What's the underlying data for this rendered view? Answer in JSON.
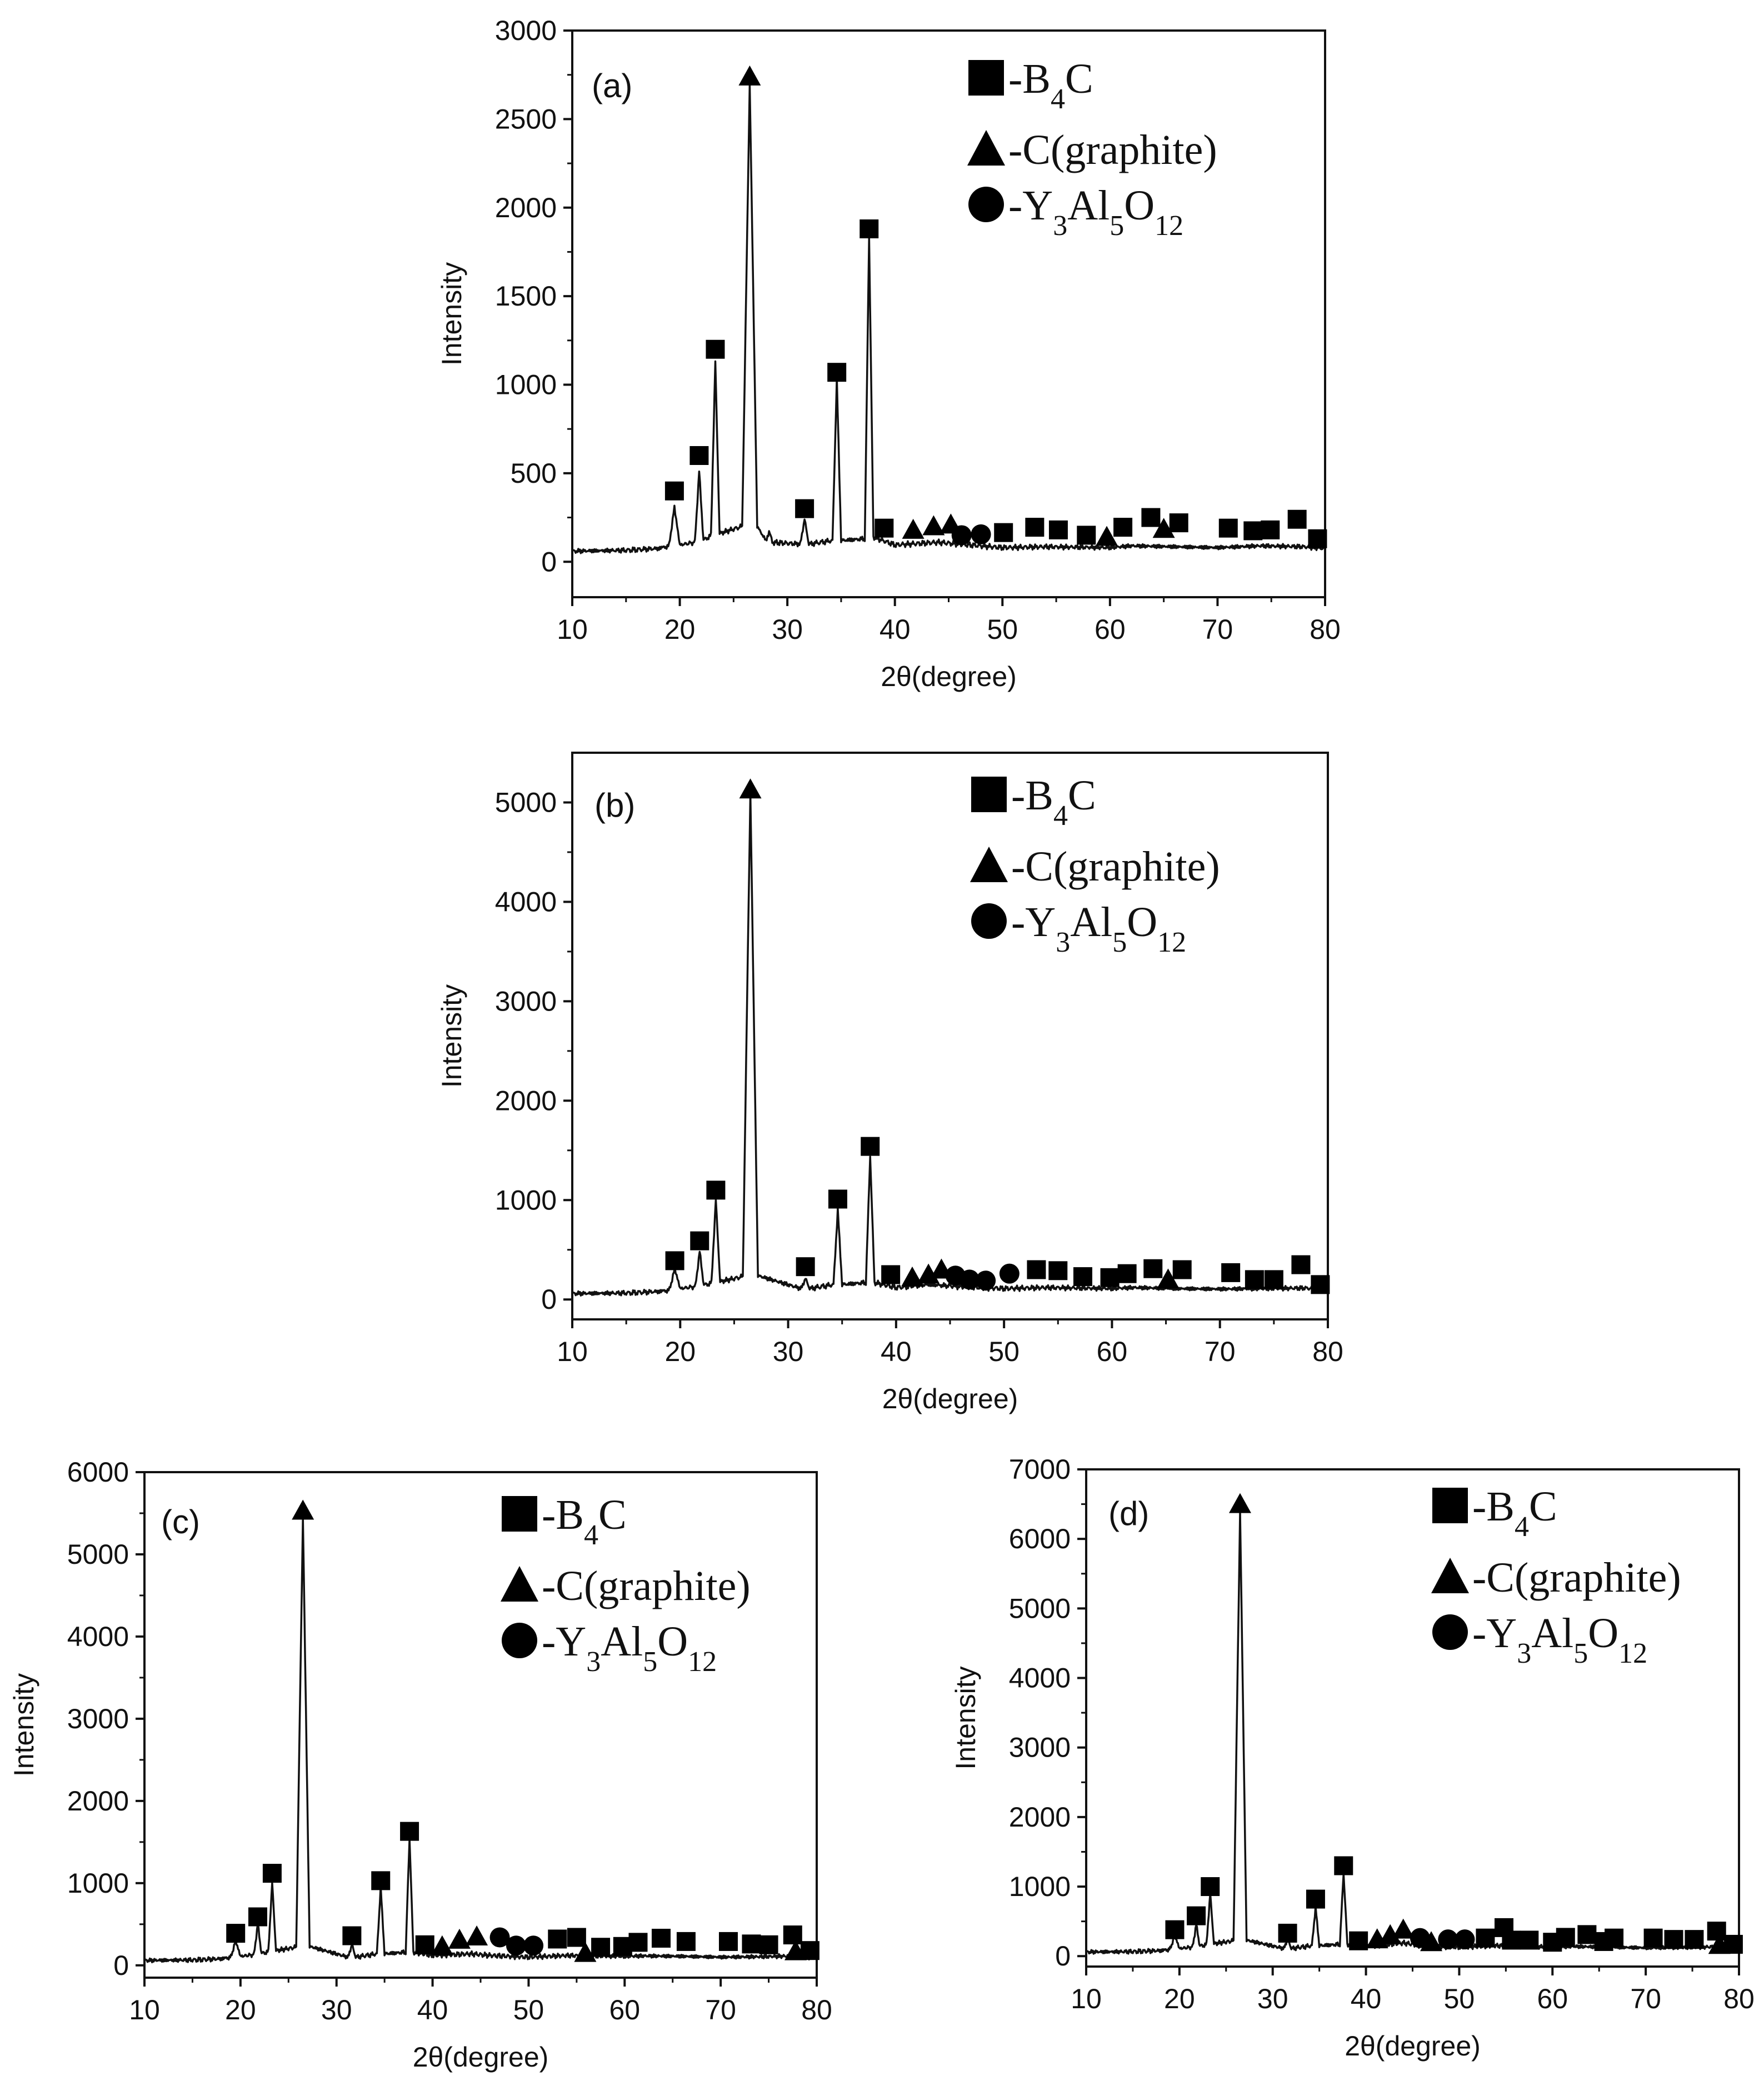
{
  "legend": {
    "b4c": {
      "prefix": "-B",
      "sub": "4",
      "suffix": "C"
    },
    "graphite": {
      "text": "-C(graphite)"
    },
    "yag": {
      "y": "-Y",
      "s1": "3",
      "al": "Al",
      "s2": "5",
      "o": "O",
      "s3": "12"
    }
  },
  "marker_colors": {
    "curve": "#111111",
    "marker": "#000000"
  },
  "chart_data": [
    {
      "type": "line",
      "panel_label": "(a)",
      "xlabel": "2θ(degree)",
      "ylabel": "Intensity",
      "xlim": [
        10,
        80
      ],
      "ylim": [
        -200,
        3000
      ],
      "xticks": [
        10,
        20,
        30,
        40,
        50,
        60,
        70,
        80
      ],
      "yticks": [
        0,
        500,
        1000,
        1500,
        2000,
        2500,
        3000
      ],
      "x": [
        10,
        15,
        18,
        19.0,
        19.5,
        20.0,
        21.4,
        21.8,
        22.2,
        22.9,
        23.3,
        23.7,
        25.8,
        26.5,
        27.2,
        28.0,
        28.3,
        28.6,
        31.2,
        31.6,
        32.0,
        34.2,
        34.6,
        35.0,
        37.2,
        37.6,
        38.0,
        40,
        44,
        46,
        50,
        54,
        60,
        62,
        66,
        70,
        74,
        78,
        80
      ],
      "y": [
        60,
        65,
        75,
        90,
        310,
        95,
        110,
        510,
        120,
        150,
        1130,
        160,
        200,
        2700,
        200,
        120,
        170,
        110,
        100,
        240,
        100,
        120,
        1030,
        120,
        130,
        1840,
        140,
        95,
        110,
        100,
        80,
        85,
        80,
        90,
        85,
        80,
        90,
        85,
        75
      ],
      "markers": [
        {
          "shape": "square",
          "x": 19.5,
          "y": 400
        },
        {
          "shape": "square",
          "x": 21.8,
          "y": 600
        },
        {
          "shape": "square",
          "x": 23.3,
          "y": 1200
        },
        {
          "shape": "triangle",
          "x": 26.5,
          "y": 2740
        },
        {
          "shape": "square",
          "x": 31.6,
          "y": 300
        },
        {
          "shape": "square",
          "x": 34.6,
          "y": 1070
        },
        {
          "shape": "square",
          "x": 37.6,
          "y": 1880
        },
        {
          "shape": "square",
          "x": 39.0,
          "y": 190
        },
        {
          "shape": "triangle",
          "x": 41.7,
          "y": 180
        },
        {
          "shape": "triangle",
          "x": 43.6,
          "y": 200
        },
        {
          "shape": "triangle",
          "x": 45.2,
          "y": 210
        },
        {
          "shape": "circle",
          "x": 46.2,
          "y": 150
        },
        {
          "shape": "circle",
          "x": 48.0,
          "y": 155
        },
        {
          "shape": "square",
          "x": 50.1,
          "y": 165
        },
        {
          "shape": "square",
          "x": 53.0,
          "y": 195
        },
        {
          "shape": "square",
          "x": 55.2,
          "y": 180
        },
        {
          "shape": "square",
          "x": 57.8,
          "y": 150
        },
        {
          "shape": "triangle",
          "x": 59.7,
          "y": 140
        },
        {
          "shape": "square",
          "x": 61.2,
          "y": 195
        },
        {
          "shape": "square",
          "x": 63.8,
          "y": 250
        },
        {
          "shape": "triangle",
          "x": 65.0,
          "y": 185
        },
        {
          "shape": "square",
          "x": 66.4,
          "y": 220
        },
        {
          "shape": "square",
          "x": 71.0,
          "y": 190
        },
        {
          "shape": "square",
          "x": 73.3,
          "y": 175
        },
        {
          "shape": "square",
          "x": 74.9,
          "y": 180
        },
        {
          "shape": "square",
          "x": 77.4,
          "y": 240
        },
        {
          "shape": "square",
          "x": 79.3,
          "y": 130
        }
      ]
    },
    {
      "type": "line",
      "panel_label": "(b)",
      "xlabel": "2θ(degree)",
      "ylabel": "Intensity",
      "xlim": [
        10,
        80
      ],
      "ylim": [
        -200,
        5500
      ],
      "xticks": [
        10,
        20,
        30,
        40,
        50,
        60,
        70,
        80
      ],
      "yticks": [
        0,
        1000,
        2000,
        3000,
        4000,
        5000
      ],
      "x": [
        10,
        15,
        18,
        19.0,
        19.5,
        20.0,
        21.4,
        21.8,
        22.2,
        22.9,
        23.3,
        23.7,
        25.8,
        26.5,
        27.2,
        31.2,
        31.6,
        32.0,
        34.2,
        34.6,
        35.0,
        37.2,
        37.6,
        38.0,
        40,
        43,
        46,
        50,
        54,
        60,
        62,
        66,
        70,
        74,
        78,
        80
      ],
      "y": [
        60,
        65,
        80,
        95,
        310,
        110,
        130,
        480,
        140,
        170,
        1000,
        180,
        230,
        5100,
        240,
        110,
        210,
        110,
        150,
        900,
        150,
        170,
        1450,
        170,
        120,
        150,
        130,
        110,
        120,
        110,
        120,
        110,
        105,
        110,
        115,
        90
      ],
      "markers": [
        {
          "shape": "square",
          "x": 19.5,
          "y": 390
        },
        {
          "shape": "square",
          "x": 21.8,
          "y": 590
        },
        {
          "shape": "square",
          "x": 23.3,
          "y": 1100
        },
        {
          "shape": "triangle",
          "x": 26.5,
          "y": 5130
        },
        {
          "shape": "square",
          "x": 31.6,
          "y": 330
        },
        {
          "shape": "square",
          "x": 34.6,
          "y": 1010
        },
        {
          "shape": "square",
          "x": 37.6,
          "y": 1540
        },
        {
          "shape": "square",
          "x": 39.5,
          "y": 250
        },
        {
          "shape": "triangle",
          "x": 41.5,
          "y": 220
        },
        {
          "shape": "triangle",
          "x": 43.0,
          "y": 250
        },
        {
          "shape": "triangle",
          "x": 44.2,
          "y": 300
        },
        {
          "shape": "circle",
          "x": 45.5,
          "y": 240
        },
        {
          "shape": "circle",
          "x": 46.8,
          "y": 200
        },
        {
          "shape": "circle",
          "x": 48.3,
          "y": 190
        },
        {
          "shape": "circle",
          "x": 50.5,
          "y": 260
        },
        {
          "shape": "square",
          "x": 53.0,
          "y": 300
        },
        {
          "shape": "square",
          "x": 55.0,
          "y": 290
        },
        {
          "shape": "square",
          "x": 57.3,
          "y": 230
        },
        {
          "shape": "square",
          "x": 59.8,
          "y": 220
        },
        {
          "shape": "square",
          "x": 61.4,
          "y": 260
        },
        {
          "shape": "square",
          "x": 63.8,
          "y": 310
        },
        {
          "shape": "triangle",
          "x": 65.2,
          "y": 200
        },
        {
          "shape": "square",
          "x": 66.5,
          "y": 300
        },
        {
          "shape": "square",
          "x": 71.0,
          "y": 270
        },
        {
          "shape": "square",
          "x": 73.2,
          "y": 200
        },
        {
          "shape": "square",
          "x": 75.0,
          "y": 200
        },
        {
          "shape": "square",
          "x": 77.5,
          "y": 350
        },
        {
          "shape": "square",
          "x": 79.3,
          "y": 150
        }
      ]
    },
    {
      "type": "line",
      "panel_label": "(c)",
      "xlabel": "2θ(degree)",
      "ylabel": "Intensity",
      "xlim": [
        10,
        80
      ],
      "ylim": [
        -150,
        6000
      ],
      "xticks": [
        10,
        20,
        30,
        40,
        50,
        60,
        70,
        80
      ],
      "yticks": [
        0,
        1000,
        2000,
        3000,
        4000,
        5000,
        6000
      ],
      "x": [
        10,
        15,
        18,
        19.0,
        19.5,
        20.0,
        21.4,
        21.8,
        22.2,
        22.9,
        23.3,
        23.7,
        25.8,
        26.5,
        27.2,
        31.2,
        31.6,
        32.0,
        34.2,
        34.6,
        35.0,
        37.2,
        37.6,
        38.0,
        40,
        44,
        46,
        50,
        54,
        60,
        62,
        66,
        70,
        74,
        78,
        80
      ],
      "y": [
        60,
        65,
        80,
        100,
        300,
        110,
        130,
        500,
        140,
        170,
        1000,
        180,
        220,
        5450,
        230,
        100,
        250,
        100,
        140,
        950,
        140,
        160,
        1550,
        160,
        120,
        140,
        120,
        100,
        120,
        110,
        115,
        110,
        100,
        105,
        115,
        85
      ],
      "markers": [
        {
          "shape": "square",
          "x": 19.5,
          "y": 390
        },
        {
          "shape": "square",
          "x": 21.8,
          "y": 590
        },
        {
          "shape": "square",
          "x": 23.3,
          "y": 1120
        },
        {
          "shape": "triangle",
          "x": 26.5,
          "y": 5530
        },
        {
          "shape": "square",
          "x": 31.6,
          "y": 360
        },
        {
          "shape": "square",
          "x": 34.6,
          "y": 1030
        },
        {
          "shape": "square",
          "x": 37.6,
          "y": 1630
        },
        {
          "shape": "square",
          "x": 39.2,
          "y": 250
        },
        {
          "shape": "triangle",
          "x": 41.0,
          "y": 230
        },
        {
          "shape": "triangle",
          "x": 42.8,
          "y": 310
        },
        {
          "shape": "triangle",
          "x": 44.6,
          "y": 350
        },
        {
          "shape": "circle",
          "x": 47.0,
          "y": 340
        },
        {
          "shape": "circle",
          "x": 48.7,
          "y": 240
        },
        {
          "shape": "circle",
          "x": 50.5,
          "y": 240
        },
        {
          "shape": "square",
          "x": 53.0,
          "y": 320
        },
        {
          "shape": "square",
          "x": 55.0,
          "y": 340
        },
        {
          "shape": "triangle",
          "x": 55.9,
          "y": 150
        },
        {
          "shape": "square",
          "x": 57.5,
          "y": 220
        },
        {
          "shape": "square",
          "x": 59.8,
          "y": 230
        },
        {
          "shape": "square",
          "x": 61.4,
          "y": 280
        },
        {
          "shape": "square",
          "x": 63.8,
          "y": 330
        },
        {
          "shape": "square",
          "x": 66.4,
          "y": 290
        },
        {
          "shape": "square",
          "x": 70.8,
          "y": 290
        },
        {
          "shape": "square",
          "x": 73.2,
          "y": 260
        },
        {
          "shape": "square",
          "x": 75.0,
          "y": 250
        },
        {
          "shape": "square",
          "x": 77.5,
          "y": 370
        },
        {
          "shape": "triangle",
          "x": 77.8,
          "y": 170
        },
        {
          "shape": "square",
          "x": 79.3,
          "y": 180
        }
      ]
    },
    {
      "type": "line",
      "panel_label": "(d)",
      "xlabel": "2θ(degree)",
      "ylabel": "Intensity",
      "xlim": [
        10,
        80
      ],
      "ylim": [
        -150,
        7000
      ],
      "xticks": [
        10,
        20,
        30,
        40,
        50,
        60,
        70,
        80
      ],
      "yticks": [
        0,
        1000,
        2000,
        3000,
        4000,
        5000,
        6000,
        7000
      ],
      "x": [
        10,
        15,
        18,
        19.0,
        19.5,
        20.0,
        21.4,
        21.8,
        22.2,
        22.9,
        23.3,
        23.7,
        25.8,
        26.5,
        27.2,
        31.2,
        31.6,
        32.0,
        34.2,
        34.6,
        35.0,
        37.2,
        37.6,
        38.0,
        40,
        44,
        46,
        50,
        54,
        60,
        62,
        66,
        70,
        74,
        78,
        80
      ],
      "y": [
        60,
        65,
        80,
        100,
        300,
        110,
        130,
        450,
        140,
        170,
        900,
        180,
        220,
        6400,
        230,
        110,
        250,
        110,
        150,
        700,
        150,
        170,
        1200,
        170,
        140,
        190,
        150,
        130,
        150,
        130,
        140,
        130,
        120,
        125,
        135,
        105
      ],
      "markers": [
        {
          "shape": "square",
          "x": 19.5,
          "y": 380
        },
        {
          "shape": "square",
          "x": 21.8,
          "y": 580
        },
        {
          "shape": "square",
          "x": 23.3,
          "y": 1000
        },
        {
          "shape": "triangle",
          "x": 26.5,
          "y": 6500
        },
        {
          "shape": "square",
          "x": 31.6,
          "y": 330
        },
        {
          "shape": "square",
          "x": 34.6,
          "y": 820
        },
        {
          "shape": "square",
          "x": 37.6,
          "y": 1300
        },
        {
          "shape": "square",
          "x": 39.2,
          "y": 220
        },
        {
          "shape": "triangle",
          "x": 41.2,
          "y": 240
        },
        {
          "shape": "triangle",
          "x": 42.6,
          "y": 300
        },
        {
          "shape": "triangle",
          "x": 44.0,
          "y": 380
        },
        {
          "shape": "circle",
          "x": 45.8,
          "y": 260
        },
        {
          "shape": "triangle",
          "x": 47.0,
          "y": 200
        },
        {
          "shape": "circle",
          "x": 48.8,
          "y": 240
        },
        {
          "shape": "circle",
          "x": 50.6,
          "y": 240
        },
        {
          "shape": "square",
          "x": 52.8,
          "y": 260
        },
        {
          "shape": "square",
          "x": 54.8,
          "y": 410
        },
        {
          "shape": "square",
          "x": 55.6,
          "y": 230
        },
        {
          "shape": "square",
          "x": 57.5,
          "y": 230
        },
        {
          "shape": "square",
          "x": 60.0,
          "y": 200
        },
        {
          "shape": "square",
          "x": 61.4,
          "y": 270
        },
        {
          "shape": "square",
          "x": 63.7,
          "y": 310
        },
        {
          "shape": "square",
          "x": 65.5,
          "y": 210
        },
        {
          "shape": "square",
          "x": 66.6,
          "y": 260
        },
        {
          "shape": "square",
          "x": 70.8,
          "y": 260
        },
        {
          "shape": "square",
          "x": 73.0,
          "y": 240
        },
        {
          "shape": "square",
          "x": 75.2,
          "y": 240
        },
        {
          "shape": "square",
          "x": 77.6,
          "y": 360
        },
        {
          "shape": "triangle",
          "x": 77.9,
          "y": 160
        },
        {
          "shape": "square",
          "x": 79.4,
          "y": 170
        }
      ]
    }
  ]
}
